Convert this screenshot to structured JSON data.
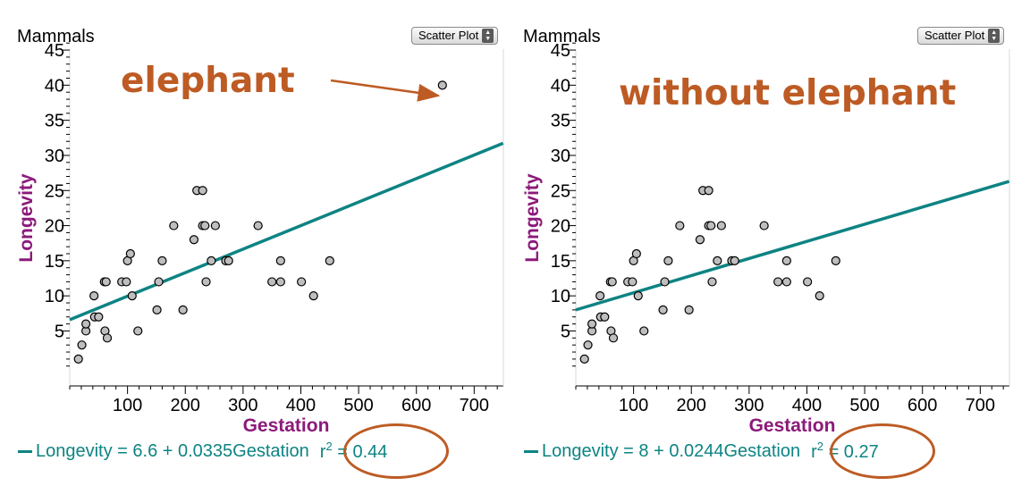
{
  "colors": {
    "regression": "#0e8383",
    "annotation": "#bd5b24",
    "point_fill": "#bebebe",
    "axis_label": "#8b1a7a"
  },
  "chart_data": [
    {
      "type": "scatter",
      "title": "Mammals",
      "plot_type": "Scatter Plot",
      "annotation": "elephant",
      "xlabel": "Gestation",
      "ylabel": "Longevity",
      "xlim": [
        0,
        750
      ],
      "ylim": [
        0,
        47
      ],
      "xticks": [
        100,
        200,
        300,
        400,
        500,
        600,
        700
      ],
      "yticks": [
        5,
        10,
        15,
        20,
        25,
        30,
        35,
        40,
        45
      ],
      "points": [
        [
          15,
          1
        ],
        [
          21,
          3
        ],
        [
          28,
          5
        ],
        [
          28,
          6
        ],
        [
          42,
          10
        ],
        [
          43,
          7
        ],
        [
          50,
          7
        ],
        [
          60,
          12
        ],
        [
          63,
          12
        ],
        [
          61,
          5
        ],
        [
          65,
          4
        ],
        [
          90,
          12
        ],
        [
          98,
          12
        ],
        [
          100,
          15
        ],
        [
          105,
          16
        ],
        [
          108,
          10
        ],
        [
          118,
          5
        ],
        [
          151,
          8
        ],
        [
          154,
          12
        ],
        [
          160,
          15
        ],
        [
          180,
          20
        ],
        [
          196,
          8
        ],
        [
          215,
          18
        ],
        [
          220,
          25
        ],
        [
          230,
          25
        ],
        [
          230,
          20
        ],
        [
          234,
          20
        ],
        [
          236,
          12
        ],
        [
          245,
          15
        ],
        [
          252,
          20
        ],
        [
          270,
          15
        ],
        [
          275,
          15
        ],
        [
          326,
          20
        ],
        [
          350,
          12
        ],
        [
          365,
          15
        ],
        [
          365,
          12
        ],
        [
          401,
          12
        ],
        [
          422,
          10
        ],
        [
          450,
          15
        ],
        [
          645,
          40
        ]
      ],
      "regression": {
        "intercept": 6.6,
        "slope": 0.0335
      },
      "equation": "Longevity = 6.6 + 0.0335Gestation",
      "r2_label": "r",
      "r2_exp": "2",
      "r2_value": " = 0.44"
    },
    {
      "type": "scatter",
      "title": "Mammals",
      "plot_type": "Scatter Plot",
      "annotation": "without elephant",
      "xlabel": "Gestation",
      "ylabel": "Longevity",
      "xlim": [
        0,
        750
      ],
      "ylim": [
        0,
        47
      ],
      "xticks": [
        100,
        200,
        300,
        400,
        500,
        600,
        700
      ],
      "yticks": [
        5,
        10,
        15,
        20,
        25,
        30,
        35,
        40,
        45
      ],
      "points": [
        [
          15,
          1
        ],
        [
          21,
          3
        ],
        [
          28,
          5
        ],
        [
          28,
          6
        ],
        [
          42,
          10
        ],
        [
          43,
          7
        ],
        [
          50,
          7
        ],
        [
          60,
          12
        ],
        [
          63,
          12
        ],
        [
          61,
          5
        ],
        [
          65,
          4
        ],
        [
          90,
          12
        ],
        [
          98,
          12
        ],
        [
          100,
          15
        ],
        [
          105,
          16
        ],
        [
          108,
          10
        ],
        [
          118,
          5
        ],
        [
          151,
          8
        ],
        [
          154,
          12
        ],
        [
          160,
          15
        ],
        [
          180,
          20
        ],
        [
          196,
          8
        ],
        [
          215,
          18
        ],
        [
          220,
          25
        ],
        [
          230,
          25
        ],
        [
          230,
          20
        ],
        [
          234,
          20
        ],
        [
          236,
          12
        ],
        [
          245,
          15
        ],
        [
          252,
          20
        ],
        [
          270,
          15
        ],
        [
          275,
          15
        ],
        [
          326,
          20
        ],
        [
          350,
          12
        ],
        [
          365,
          15
        ],
        [
          365,
          12
        ],
        [
          401,
          12
        ],
        [
          422,
          10
        ],
        [
          450,
          15
        ]
      ],
      "regression": {
        "intercept": 8,
        "slope": 0.0244
      },
      "equation": "Longevity = 8 + 0.0244Gestation",
      "r2_label": "r",
      "r2_exp": "2",
      "r2_value": " = 0.27"
    }
  ]
}
